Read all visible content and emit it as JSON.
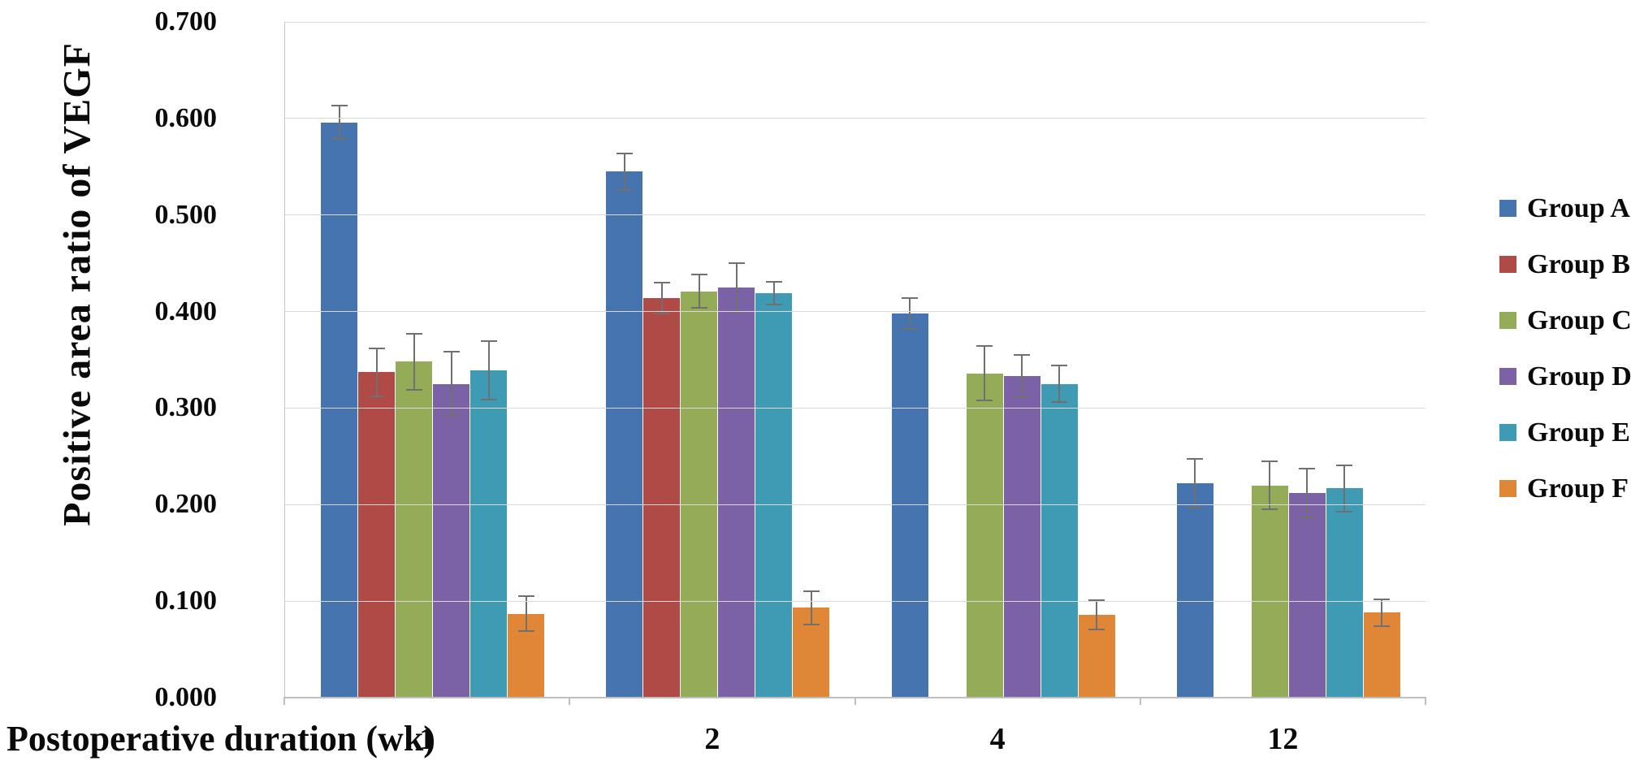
{
  "chart_data": {
    "type": "bar",
    "title": "",
    "ylabel": "Positive area ratio of VEGF",
    "xlabel": "Postoperative duration (wk)",
    "categories": [
      "1",
      "2",
      "4",
      "12"
    ],
    "y_ticks": [
      "0.700",
      "0.600",
      "0.500",
      "0.400",
      "0.300",
      "0.200",
      "0.100",
      "0.000"
    ],
    "ylim": [
      0.0,
      0.7
    ],
    "grid": "horizontal-light",
    "legend_position": "right",
    "error_bars": true,
    "series": [
      {
        "name": "Group A",
        "color": "#4674AE",
        "values": [
          0.596,
          0.545,
          0.398,
          0.222
        ],
        "errors": [
          0.017,
          0.019,
          0.016,
          0.025
        ]
      },
      {
        "name": "Group B",
        "color": "#B04A47",
        "values": [
          0.337,
          0.414,
          null,
          null
        ],
        "errors": [
          0.025,
          0.016,
          null,
          null
        ]
      },
      {
        "name": "Group C",
        "color": "#94AC57",
        "values": [
          0.348,
          0.421,
          0.336,
          0.22
        ],
        "errors": [
          0.029,
          0.017,
          0.028,
          0.025
        ]
      },
      {
        "name": "Group D",
        "color": "#7B62A6",
        "values": [
          0.325,
          0.425,
          0.333,
          0.212
        ],
        "errors": [
          0.033,
          0.025,
          0.022,
          0.025
        ]
      },
      {
        "name": "Group E",
        "color": "#3F9AB4",
        "values": [
          0.339,
          0.419,
          0.325,
          0.217
        ],
        "errors": [
          0.03,
          0.012,
          0.019,
          0.024
        ]
      },
      {
        "name": "Group F",
        "color": "#E08637",
        "values": [
          0.087,
          0.093,
          0.086,
          0.088
        ],
        "errors": [
          0.018,
          0.017,
          0.015,
          0.014
        ]
      }
    ],
    "colors": {
      "axis": "#BFBFBF",
      "gridline": "#D9D9D9",
      "error_bar": "#707070"
    }
  }
}
